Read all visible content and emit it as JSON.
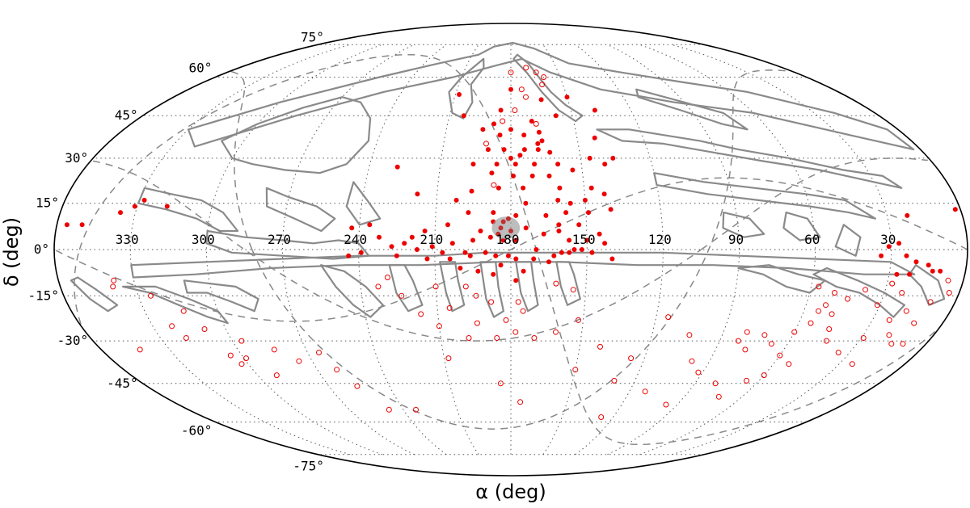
{
  "chart_data": {
    "type": "scatter",
    "projection": "mollweide",
    "xlabel": "α (deg)",
    "ylabel": "δ (deg)",
    "ra_tick_labels": [
      "330",
      "300",
      "270",
      "240",
      "210",
      "180",
      "150",
      "120",
      "90",
      "60",
      "30"
    ],
    "dec_tick_labels": [
      "75°",
      "60°",
      "45°",
      "30°",
      "15°",
      "0°",
      "-15°",
      "-30°",
      "-45°",
      "-60°",
      "-75°"
    ],
    "grid": true,
    "colors": {
      "points": "#ee0000",
      "footprint": "#8a8a8a",
      "grid": "#555555",
      "highlight": "#999999"
    },
    "highlight_region": {
      "ra": 182,
      "dec": 7,
      "radius_deg": 4
    },
    "series": [
      {
        "marker": "filled",
        "points": [
          [
            193,
            40
          ],
          [
            185,
            38
          ],
          [
            174,
            38
          ],
          [
            167,
            39
          ],
          [
            166,
            36
          ],
          [
            190,
            33
          ],
          [
            183,
            33
          ],
          [
            174,
            33
          ],
          [
            168,
            33
          ],
          [
            163,
            32
          ],
          [
            196,
            28
          ],
          [
            186,
            28
          ],
          [
            178,
            28
          ],
          [
            170,
            28
          ],
          [
            160,
            28
          ],
          [
            180,
            30
          ],
          [
            176,
            31
          ],
          [
            188,
            25
          ],
          [
            179,
            24
          ],
          [
            171,
            24
          ],
          [
            164,
            24
          ],
          [
            154,
            26
          ],
          [
            146,
            30
          ],
          [
            147,
            20
          ],
          [
            140,
            28
          ],
          [
            160,
            20
          ],
          [
            175,
            20
          ],
          [
            185,
            20
          ],
          [
            196,
            19
          ],
          [
            156,
            15
          ],
          [
            150,
            16
          ],
          [
            142,
            18
          ],
          [
            140,
            13
          ],
          [
            149,
            12
          ],
          [
            158,
            12
          ],
          [
            166,
            11
          ],
          [
            178,
            11
          ],
          [
            187,
            12
          ],
          [
            197,
            12
          ],
          [
            202,
            16
          ],
          [
            174,
            15
          ],
          [
            161,
            16
          ],
          [
            153,
            8
          ],
          [
            161,
            6
          ],
          [
            167,
            5
          ],
          [
            157,
            3
          ],
          [
            150,
            3
          ],
          [
            145,
            5
          ],
          [
            143,
            2
          ],
          [
            148,
            -1
          ],
          [
            155,
            0
          ],
          [
            160,
            -1
          ],
          [
            170,
            0
          ],
          [
            183,
            3
          ],
          [
            188,
            4
          ],
          [
            192,
            6
          ],
          [
            195,
            3
          ],
          [
            198,
            -1
          ],
          [
            203,
            2
          ],
          [
            207,
            -1
          ],
          [
            211,
            1
          ],
          [
            217,
            0
          ],
          [
            222,
            2
          ],
          [
            227,
            1
          ],
          [
            232,
            4
          ],
          [
            236,
            8
          ],
          [
            243,
            7
          ],
          [
            239,
            -1
          ],
          [
            244,
            -2
          ],
          [
            190,
            -1
          ],
          [
            186,
            -2
          ],
          [
            181,
            -2
          ],
          [
            178,
            -3
          ],
          [
            184,
            -5
          ],
          [
            187,
            -8
          ],
          [
            193,
            -7
          ],
          [
            175,
            -7
          ],
          [
            178,
            -10
          ],
          [
            196,
            -2
          ],
          [
            204,
            -3
          ],
          [
            213,
            -3
          ],
          [
            219,
            4
          ],
          [
            157,
            -1
          ],
          [
            152,
            0
          ],
          [
            140,
            -3
          ],
          [
            136,
            30
          ],
          [
            142,
            37
          ],
          [
            185,
            47
          ],
          [
            188,
            42
          ],
          [
            203,
            45
          ],
          [
            164,
            51
          ],
          [
            158,
            45
          ],
          [
            138,
            47
          ],
          [
            150,
            52
          ],
          [
            208,
            53
          ],
          [
            180,
            55
          ],
          [
            168,
            35
          ],
          [
            228,
            27
          ],
          [
            218,
            18
          ],
          [
            331,
            14
          ],
          [
            336,
            12
          ],
          [
            328,
            16
          ],
          [
            318,
            14
          ],
          [
            356,
            8
          ],
          [
            350,
            8
          ],
          [
            31,
            1
          ],
          [
            27,
            2
          ],
          [
            24,
            -2
          ],
          [
            20,
            -4
          ],
          [
            15,
            -5
          ],
          [
            27,
            -8
          ],
          [
            34,
            -2
          ],
          [
            22,
            -8
          ],
          [
            13,
            -7
          ],
          [
            10,
            -7
          ],
          [
            2,
            13
          ],
          [
            22,
            11
          ],
          [
            178,
            3
          ],
          [
            174,
            7
          ],
          [
            187,
            9
          ],
          [
            171,
            -3
          ],
          [
            163,
            -2
          ],
          [
            165,
            -4
          ],
          [
            200,
            -6
          ],
          [
            161,
            8
          ],
          [
            205,
            8
          ],
          [
            214,
            6
          ],
          [
            225,
            -2
          ],
          [
            180,
            40
          ],
          [
            170,
            43
          ]
        ]
      },
      {
        "marker": "open",
        "points": [
          [
            170,
            64
          ],
          [
            164,
            62
          ],
          [
            180,
            62
          ],
          [
            160,
            60
          ],
          [
            162,
            57
          ],
          [
            172,
            52
          ],
          [
            178,
            47
          ],
          [
            184,
            43
          ],
          [
            191,
            35
          ],
          [
            187,
            21
          ],
          [
            168,
            42
          ],
          [
            174,
            55
          ],
          [
            210,
            -12
          ],
          [
            198,
            -12
          ],
          [
            194,
            -15
          ],
          [
            188,
            -17
          ],
          [
            177,
            -17
          ],
          [
            175,
            -20
          ],
          [
            182,
            -23
          ],
          [
            194,
            -24
          ],
          [
            205,
            -19
          ],
          [
            210,
            -25
          ],
          [
            217,
            -21
          ],
          [
            224,
            -15
          ],
          [
            229,
            -9
          ],
          [
            233,
            -12
          ],
          [
            162,
            -11
          ],
          [
            155,
            -13
          ],
          [
            152,
            -23
          ],
          [
            161,
            -27
          ],
          [
            170,
            -29
          ],
          [
            178,
            -27
          ],
          [
            186,
            -29
          ],
          [
            198,
            -29
          ],
          [
            185,
            -45
          ],
          [
            175,
            -52
          ],
          [
            208,
            -36
          ],
          [
            265,
            -34
          ],
          [
            261,
            -40
          ],
          [
            284,
            -33
          ],
          [
            276,
            -37
          ],
          [
            291,
            -42
          ],
          [
            303,
            -38
          ],
          [
            309,
            -26
          ],
          [
            314,
            -20
          ],
          [
            325,
            -15
          ],
          [
            338,
            -10
          ],
          [
            339,
            -12
          ],
          [
            322,
            -25
          ],
          [
            319,
            -29
          ],
          [
            343,
            -33
          ],
          [
            296,
            -30
          ],
          [
            305,
            -35
          ],
          [
            299,
            -36
          ],
          [
            256,
            -46
          ],
          [
            248,
            -55
          ],
          [
            233,
            -55
          ],
          [
            82,
            -30
          ],
          [
            80,
            -27
          ],
          [
            77,
            -33
          ],
          [
            72,
            -28
          ],
          [
            67,
            -31
          ],
          [
            60,
            -27
          ],
          [
            55,
            -24
          ],
          [
            54,
            -20
          ],
          [
            48,
            -21
          ],
          [
            50,
            -14
          ],
          [
            44,
            -16
          ],
          [
            38,
            -13
          ],
          [
            31,
            -18
          ],
          [
            23,
            -23
          ],
          [
            12,
            -24
          ],
          [
            10,
            -17
          ],
          [
            4,
            -14
          ],
          [
            29,
            -29
          ],
          [
            19,
            -28
          ],
          [
            15,
            -31
          ],
          [
            72,
            -50
          ],
          [
            80,
            -45
          ],
          [
            92,
            -41
          ],
          [
            98,
            -37
          ],
          [
            44,
            -30
          ],
          [
            60,
            -42
          ],
          [
            53,
            -38
          ],
          [
            66,
            -44
          ],
          [
            60,
            -35
          ],
          [
            28,
            -11
          ],
          [
            23,
            -14
          ],
          [
            127,
            -58
          ],
          [
            96,
            -53
          ],
          [
            112,
            -48
          ],
          [
            6,
            -10
          ],
          [
            57,
            -12
          ],
          [
            52,
            -18
          ],
          [
            46,
            -26
          ],
          [
            18,
            -20
          ],
          [
            10,
            -31
          ],
          [
            35,
            -34
          ],
          [
            104,
            -28
          ],
          [
            115,
            -22
          ],
          [
            24,
            -38
          ],
          [
            126,
            -36
          ],
          [
            150,
            -40
          ],
          [
            141,
            -32
          ],
          [
            130,
            -44
          ]
        ]
      }
    ]
  }
}
